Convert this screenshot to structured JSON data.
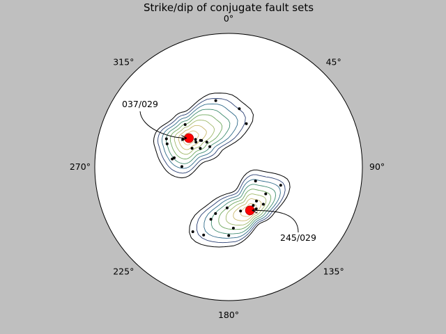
{
  "chart_data": {
    "type": "scatter",
    "subtype": "polar stereonet with density contours",
    "title": "Strike/dip of conjugate fault sets",
    "direction_labels": [
      "0°",
      "45°",
      "90°",
      "135°",
      "180°",
      "225°",
      "270°",
      "315°"
    ],
    "angle_grid": "none",
    "radius_grid": "none",
    "background": "#bfbfbf",
    "colors": {
      "poles": "#000000",
      "mean_marker": "#ff0000",
      "contour_outer": "#000000",
      "contour_levels": [
        "#000000",
        "#2a3f73",
        "#2f6b8a",
        "#3f8c70",
        "#6ea85e",
        "#a0b86a",
        "#c9b96e",
        "#d9c27f"
      ]
    },
    "clusters": [
      {
        "mean_label": "037/029",
        "mean": {
          "azimuth_deg": 306.1,
          "radius_frac": 0.367
        },
        "poles": [
          {
            "azimuth_deg": 349.1,
            "radius_frac": 0.506
          },
          {
            "azimuth_deg": 10.4,
            "radius_frac": 0.443
          },
          {
            "azimuth_deg": 22.3,
            "radius_frac": 0.35
          },
          {
            "azimuth_deg": 314.4,
            "radius_frac": 0.454
          },
          {
            "azimuth_deg": 294.4,
            "radius_frac": 0.51
          },
          {
            "azimuth_deg": 290.7,
            "radius_frac": 0.491
          },
          {
            "azimuth_deg": 308.9,
            "radius_frac": 0.35
          },
          {
            "azimuth_deg": 297.2,
            "radius_frac": 0.307
          },
          {
            "azimuth_deg": 313.5,
            "radius_frac": 0.29
          },
          {
            "azimuth_deg": 309.8,
            "radius_frac": 0.322
          },
          {
            "azimuth_deg": 318.8,
            "radius_frac": 0.247
          },
          {
            "azimuth_deg": 314.5,
            "radius_frac": 0.283
          },
          {
            "azimuth_deg": 307.4,
            "radius_frac": 0.307
          },
          {
            "azimuth_deg": 279.7,
            "radius_frac": 0.412
          },
          {
            "azimuth_deg": 317.5,
            "radius_frac": 0.207
          },
          {
            "azimuth_deg": 301.0,
            "radius_frac": 0.4
          },
          {
            "azimuth_deg": 278.1,
            "radius_frac": 0.425
          },
          {
            "azimuth_deg": 270.5,
            "radius_frac": 0.349
          },
          {
            "azimuth_deg": 303.4,
            "radius_frac": 0.253
          }
        ]
      },
      {
        "mean_label": "245/029",
        "mean": {
          "azimuth_deg": 153.8,
          "radius_frac": 0.362
        },
        "poles": [
          {
            "azimuth_deg": 117.4,
            "radius_frac": 0.227
          },
          {
            "azimuth_deg": 109.3,
            "radius_frac": 0.413
          },
          {
            "azimuth_deg": 125.9,
            "radius_frac": 0.343
          },
          {
            "azimuth_deg": 140.7,
            "radius_frac": 0.329
          },
          {
            "azimuth_deg": 147.4,
            "radius_frac": 0.342
          },
          {
            "azimuth_deg": 146.6,
            "radius_frac": 0.376
          },
          {
            "azimuth_deg": 151.7,
            "radius_frac": 0.372
          },
          {
            "azimuth_deg": 137.0,
            "radius_frac": 0.381
          },
          {
            "azimuth_deg": 164.8,
            "radius_frac": 0.341
          },
          {
            "azimuth_deg": 175.5,
            "radius_frac": 0.459
          },
          {
            "azimuth_deg": 179.9,
            "radius_frac": 0.513
          },
          {
            "azimuth_deg": 200.1,
            "radius_frac": 0.542
          },
          {
            "azimuth_deg": 208.9,
            "radius_frac": 0.553
          },
          {
            "azimuth_deg": 198.7,
            "radius_frac": 0.413
          },
          {
            "azimuth_deg": 195.6,
            "radius_frac": 0.362
          },
          {
            "azimuth_deg": 182.0,
            "radius_frac": 0.306
          }
        ]
      }
    ]
  }
}
